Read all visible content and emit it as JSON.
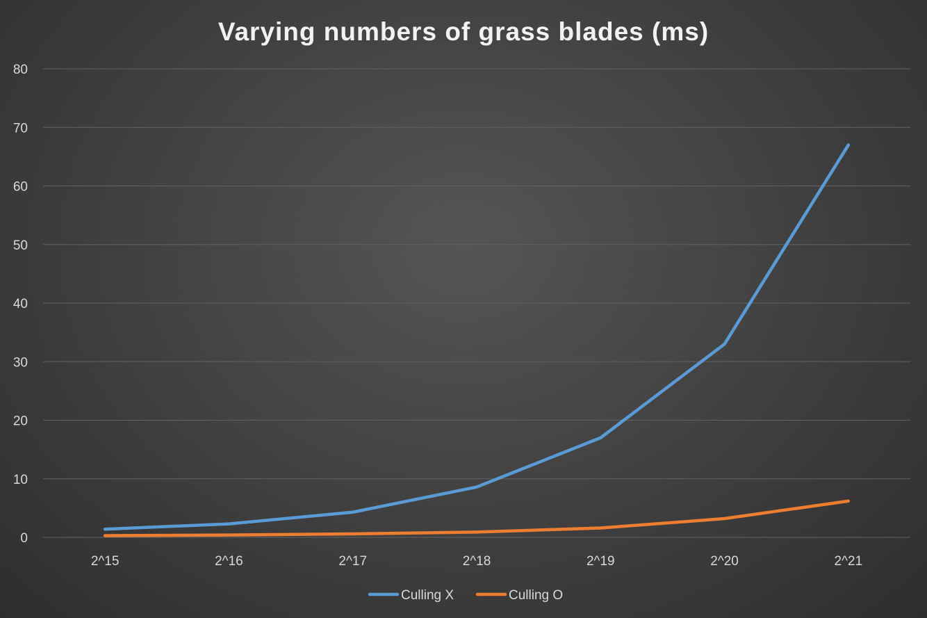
{
  "chart_data": {
    "type": "line",
    "title": "Varying numbers of grass blades (ms)",
    "categories": [
      "2^15",
      "2^16",
      "2^17",
      "2^18",
      "2^19",
      "2^20",
      "2^21"
    ],
    "series": [
      {
        "name": "Culling X",
        "color": "#5b9bd5",
        "values": [
          1.4,
          2.3,
          4.3,
          8.6,
          17,
          33,
          67
        ]
      },
      {
        "name": "Culling O",
        "color": "#ed7d31",
        "values": [
          0.3,
          0.4,
          0.6,
          0.9,
          1.6,
          3.2,
          6.2
        ]
      }
    ],
    "ylim": [
      0,
      80
    ],
    "yticks": [
      "0",
      "10",
      "20",
      "30",
      "40",
      "50",
      "60",
      "70",
      "80"
    ],
    "grid": true,
    "legend": "bottom"
  }
}
